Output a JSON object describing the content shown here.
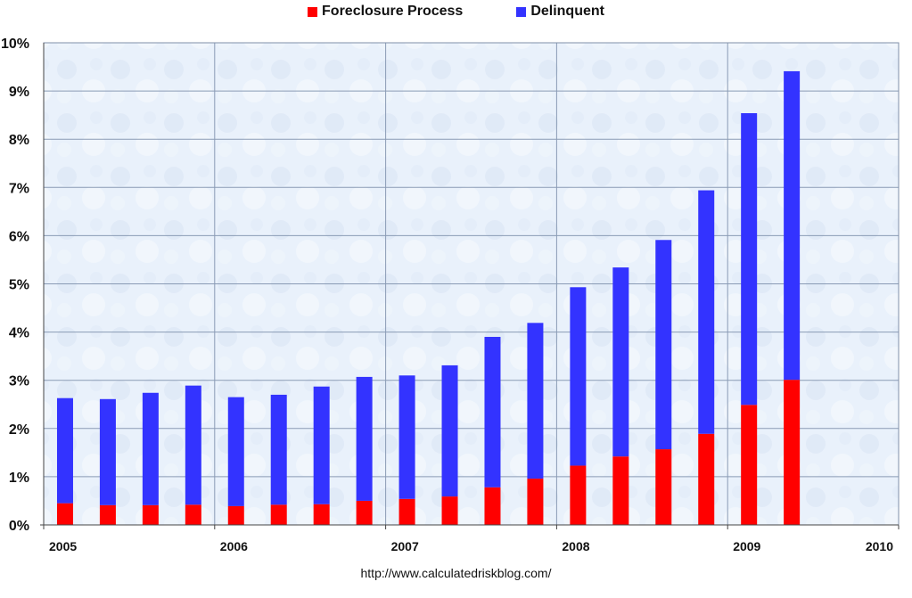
{
  "legend": [
    {
      "label": "Foreclosure Process",
      "color": "#ff0000"
    },
    {
      "label": "Delinquent",
      "color": "#3333ff"
    }
  ],
  "source_url": "http://www.calculatedriskblog.com/",
  "chart_data": {
    "type": "bar",
    "stacked": true,
    "title": "",
    "xlabel": "",
    "ylabel": "",
    "ylim": [
      0,
      10
    ],
    "y_tick_labels": [
      "0%",
      "1%",
      "2%",
      "3%",
      "4%",
      "5%",
      "6%",
      "7%",
      "8%",
      "9%",
      "10%"
    ],
    "x_range": [
      2005,
      2010
    ],
    "x_tick_labels": [
      "2005",
      "2006",
      "2007",
      "2008",
      "2009",
      "2010"
    ],
    "grid": true,
    "legend_position": "top-center",
    "x": [
      "2005Q1",
      "2005Q2",
      "2005Q3",
      "2005Q4",
      "2006Q1",
      "2006Q2",
      "2006Q3",
      "2006Q4",
      "2007Q1",
      "2007Q2",
      "2007Q3",
      "2007Q4",
      "2008Q1",
      "2008Q2",
      "2008Q3",
      "2008Q4",
      "2009Q1",
      "2009Q2"
    ],
    "series": [
      {
        "name": "Foreclosure Process",
        "color": "#ff0000",
        "values": [
          0.45,
          0.41,
          0.41,
          0.42,
          0.39,
          0.42,
          0.43,
          0.5,
          0.54,
          0.59,
          0.78,
          0.96,
          1.23,
          1.42,
          1.57,
          1.89,
          2.49,
          3.01
        ]
      },
      {
        "name": "Delinquent",
        "color": "#3333ff",
        "values": [
          2.18,
          2.2,
          2.33,
          2.47,
          2.26,
          2.28,
          2.44,
          2.57,
          2.56,
          2.72,
          3.12,
          3.23,
          3.7,
          3.92,
          4.34,
          5.05,
          6.05,
          6.4
        ]
      }
    ]
  }
}
